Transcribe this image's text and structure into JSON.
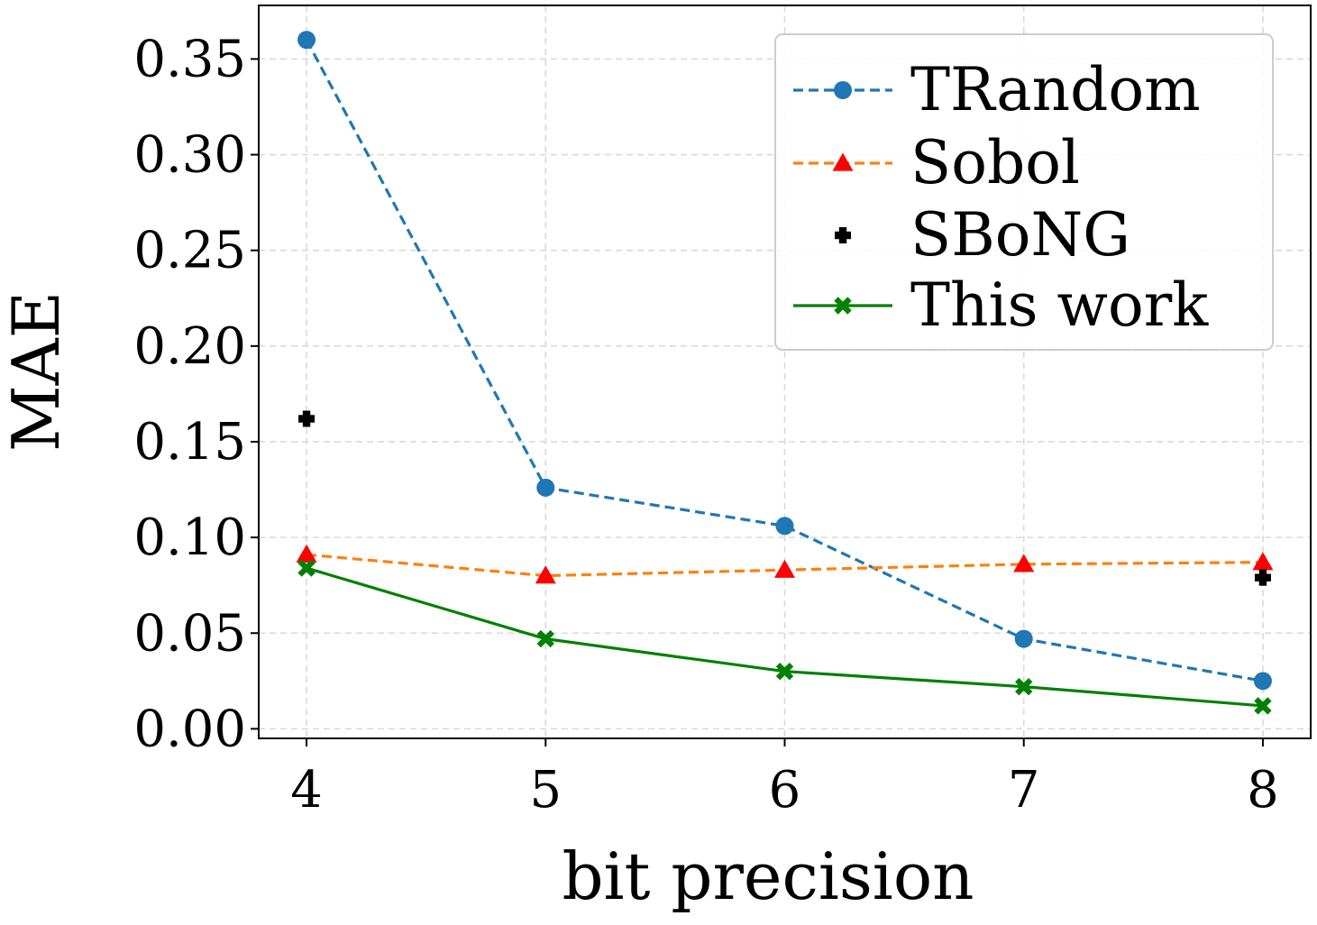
{
  "chart_data": {
    "type": "line",
    "title": "",
    "xlabel": "bit precision",
    "ylabel": "MAE",
    "x": [
      4,
      5,
      6,
      7,
      8
    ],
    "xlim": [
      3.8,
      8.2
    ],
    "ylim": [
      -0.005,
      0.378
    ],
    "xticks": [
      4,
      5,
      6,
      7,
      8
    ],
    "xtick_labels": [
      "4",
      "5",
      "6",
      "7",
      "8"
    ],
    "yticks": [
      0.0,
      0.05,
      0.1,
      0.15,
      0.2,
      0.25,
      0.3,
      0.35
    ],
    "ytick_labels": [
      "0.00",
      "0.05",
      "0.10",
      "0.15",
      "0.20",
      "0.25",
      "0.30",
      "0.35"
    ],
    "grid": true,
    "legend_position": "top-right",
    "series": [
      {
        "name": "TRandom",
        "color": "#1f77b4",
        "line": "dashed",
        "marker": "circle",
        "x": [
          4,
          5,
          6,
          7,
          8
        ],
        "values": [
          0.36,
          0.126,
          0.106,
          0.047,
          0.025
        ]
      },
      {
        "name": "Sobol",
        "color": "#ff7f0e",
        "marker_color": "#ff0000",
        "line": "dashed",
        "marker": "triangle",
        "x": [
          4,
          5,
          6,
          7,
          8
        ],
        "values": [
          0.091,
          0.08,
          0.083,
          0.086,
          0.087
        ]
      },
      {
        "name": "SBoNG",
        "color": "#000000",
        "line": "none",
        "marker": "plus",
        "x": [
          4,
          8
        ],
        "values": [
          0.162,
          0.079
        ]
      },
      {
        "name": "This work",
        "color": "#008000",
        "line": "solid",
        "marker": "x",
        "x": [
          4,
          5,
          6,
          7,
          8
        ],
        "values": [
          0.084,
          0.047,
          0.03,
          0.022,
          0.012
        ]
      }
    ]
  }
}
